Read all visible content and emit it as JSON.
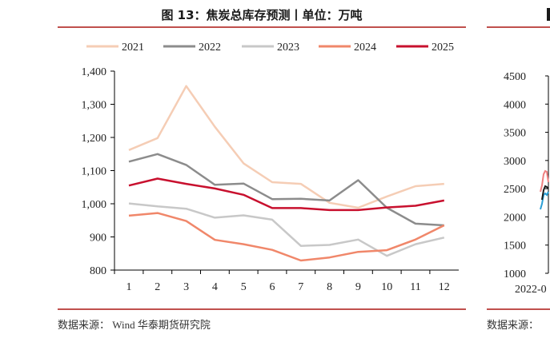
{
  "left_panel": {
    "title": "图 13：焦炭总库存预测丨单位：万吨",
    "source": "数据来源：  Wind  华泰期货研究院"
  },
  "right_panel": {
    "y_ticks": [
      "4500",
      "4000",
      "3500",
      "3000",
      "2500",
      "2000",
      "1500",
      "1000"
    ],
    "x_label_partial": "2022-0",
    "source_partial": "数据来源："
  },
  "chart_data": {
    "type": "line",
    "title": "图 13：焦炭总库存预测丨单位：万吨",
    "categories": [
      "1",
      "2",
      "3",
      "4",
      "5",
      "6",
      "7",
      "8",
      "9",
      "10",
      "11",
      "12"
    ],
    "ylim": [
      800,
      1400
    ],
    "yticks": [
      800,
      900,
      1000,
      1100,
      1200,
      1300,
      1400
    ],
    "ytick_labels": [
      "800",
      "900",
      "1,000",
      "1,100",
      "1,200",
      "1,300",
      "1,400"
    ],
    "grid": false,
    "legend": "top",
    "series": [
      {
        "name": "2021",
        "color": "#f5cdb5",
        "width": 2.5,
        "values": [
          1162,
          1198,
          1355,
          1232,
          1122,
          1065,
          1060,
          1003,
          988,
          1022,
          1053,
          1060
        ]
      },
      {
        "name": "2022",
        "color": "#8c8c8c",
        "width": 2.5,
        "values": [
          1127,
          1150,
          1117,
          1057,
          1061,
          1014,
          1015,
          1010,
          1071,
          988,
          940,
          935
        ]
      },
      {
        "name": "2023",
        "color": "#c8c8c8",
        "width": 2.5,
        "values": [
          1001,
          992,
          985,
          958,
          965,
          952,
          873,
          876,
          892,
          843,
          878,
          898
        ]
      },
      {
        "name": "2024",
        "color": "#f0876a",
        "width": 2.5,
        "values": [
          964,
          972,
          948,
          891,
          878,
          861,
          829,
          838,
          855,
          860,
          892,
          935
        ]
      },
      {
        "name": "2025",
        "color": "#c8102e",
        "width": 2.5,
        "values": [
          1055,
          1076,
          1060,
          1046,
          1027,
          987,
          987,
          981,
          981,
          989,
          994,
          1010
        ]
      }
    ]
  }
}
